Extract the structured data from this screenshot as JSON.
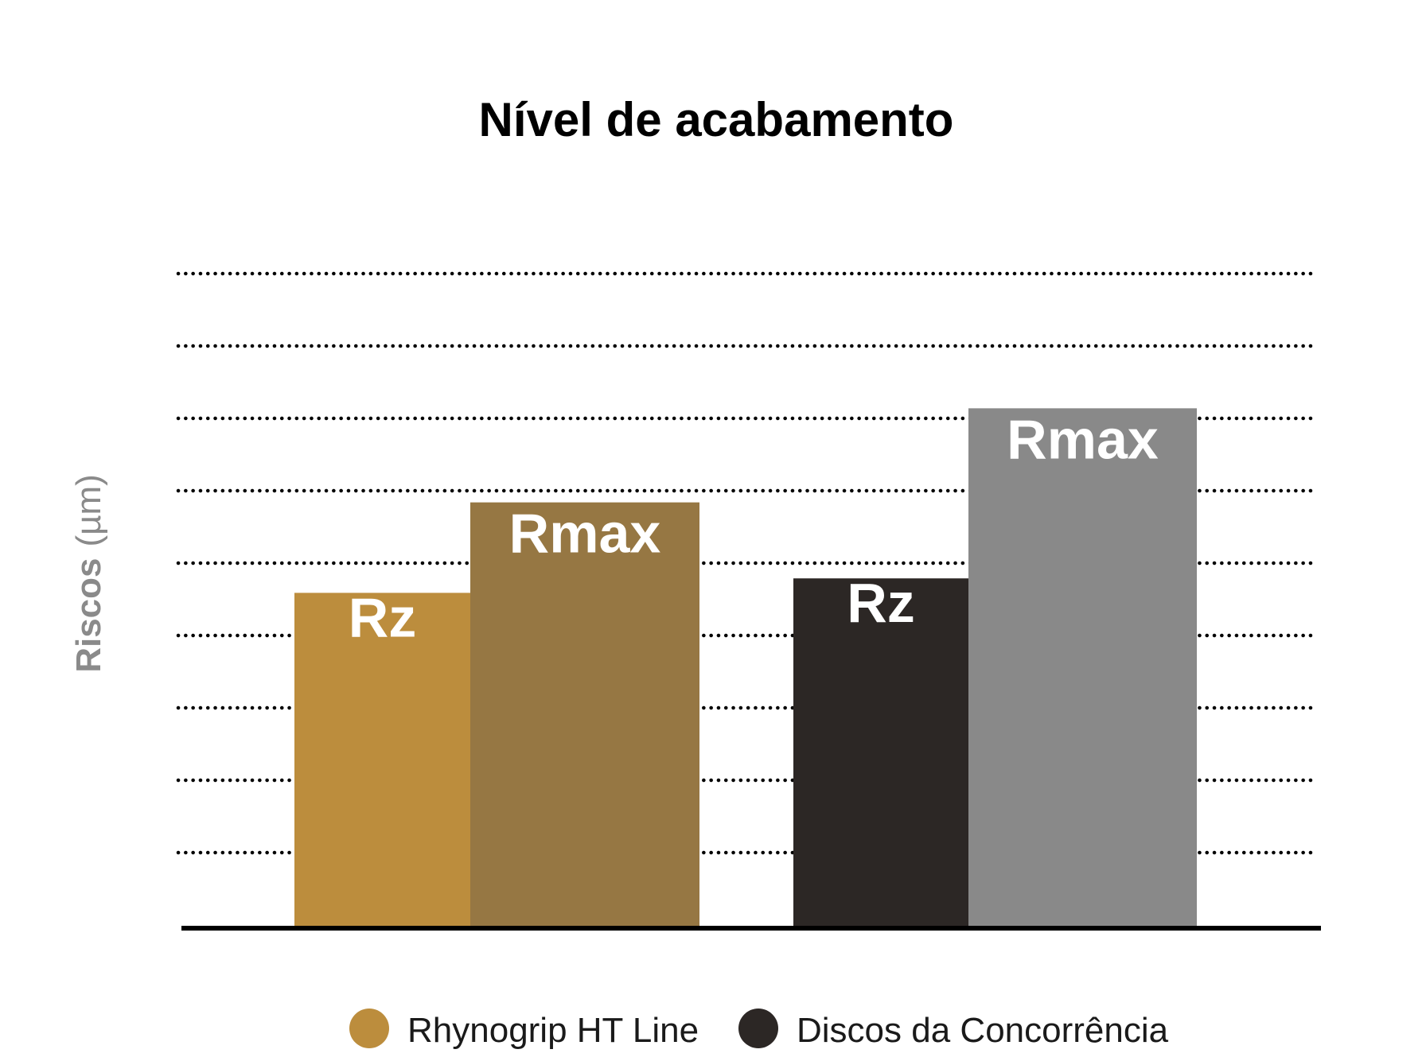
{
  "chart_data": {
    "type": "bar",
    "title": "Nível de acabamento",
    "ylabel": "Riscos",
    "ylabel_unit": "(µm)",
    "xlabel": "",
    "ylim": [
      0,
      9
    ],
    "grid": true,
    "grid_style": "dotted",
    "y_ticks_shown": false,
    "legend_position": "bottom",
    "groups": [
      {
        "name": "Rhynogrip HT Line",
        "bars": [
          {
            "label": "Rz",
            "value": 4.6,
            "color": "#BC8D3D"
          },
          {
            "label": "Rmax",
            "value": 5.85,
            "color": "#967743"
          }
        ]
      },
      {
        "name": "Discos da Concorrência",
        "bars": [
          {
            "label": "Rz",
            "value": 4.8,
            "color": "#2C2725"
          },
          {
            "label": "Rmax",
            "value": 7.15,
            "color": "#898989"
          }
        ]
      }
    ],
    "legend": [
      {
        "label": "Rhynogrip HT Line",
        "color": "#BC8D3D"
      },
      {
        "label": "Discos da Concorrência",
        "color": "#2C2725"
      }
    ]
  }
}
